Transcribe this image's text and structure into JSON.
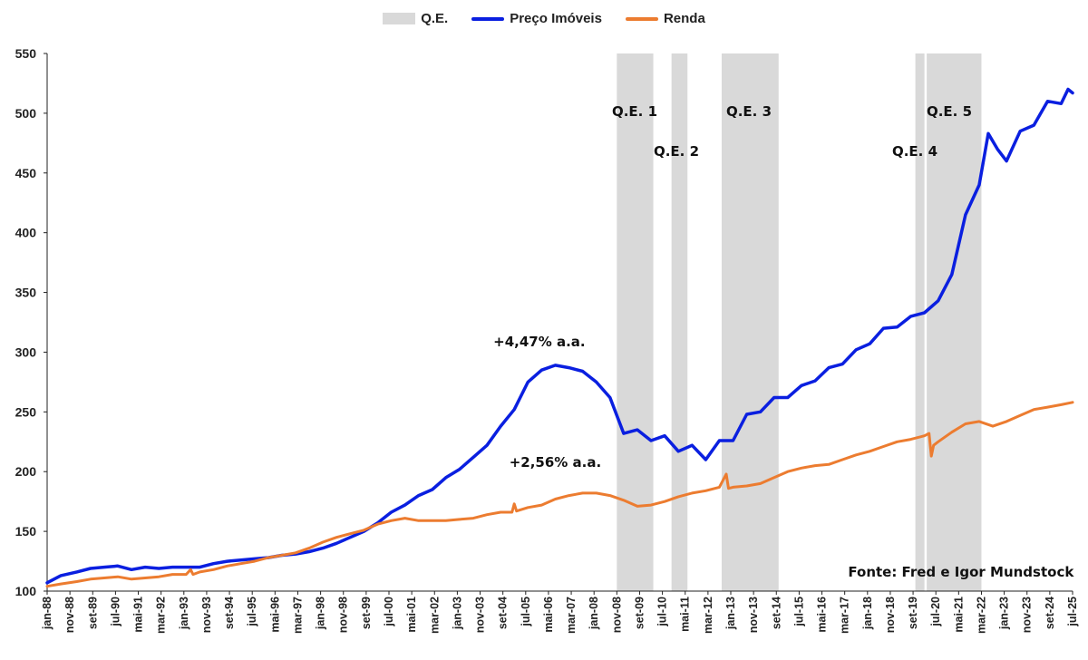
{
  "legend": {
    "qe_label": "Q.E.",
    "price_label": "Preço Imóveis",
    "income_label": "Renda"
  },
  "colors": {
    "price": "#0a1fe0",
    "income": "#ec7c30",
    "qe": "#d9d9d9",
    "axis": "#222222"
  },
  "chart_data": {
    "type": "line",
    "title": "",
    "xlabel": "",
    "ylabel": "",
    "ylim": [
      100,
      550
    ],
    "yticks": [
      100,
      150,
      200,
      250,
      300,
      350,
      400,
      450,
      500,
      550
    ],
    "grid": false,
    "legend_position": "top-center",
    "xlim": [
      "1988-01",
      "2025-07"
    ],
    "x_tick_labels": [
      "jan-88",
      "nov-88",
      "set-89",
      "jul-90",
      "mai-91",
      "mar-92",
      "jan-93",
      "nov-93",
      "set-94",
      "jul-95",
      "mai-96",
      "mar-97",
      "jan-98",
      "nov-98",
      "set-99",
      "jul-00",
      "mai-01",
      "mar-02",
      "jan-03",
      "nov-03",
      "set-04",
      "jul-05",
      "mai-06",
      "mar-07",
      "jan-08",
      "nov-08",
      "set-09",
      "jul-10",
      "mai-11",
      "mar-12",
      "jan-13",
      "nov-13",
      "set-14",
      "jul-15",
      "mai-16",
      "mar-17",
      "jan-18",
      "nov-18",
      "set-19",
      "jul-20",
      "mai-21",
      "mar-22",
      "jan-23",
      "nov-23",
      "set-24",
      "jul-25"
    ],
    "series": [
      {
        "name": "Preço Imóveis",
        "color": "#0a1fe0",
        "points": [
          [
            "1988-01",
            107
          ],
          [
            "1988-07",
            113
          ],
          [
            "1989-02",
            116
          ],
          [
            "1989-08",
            119
          ],
          [
            "1990-02",
            120
          ],
          [
            "1990-08",
            121
          ],
          [
            "1991-02",
            118
          ],
          [
            "1991-08",
            120
          ],
          [
            "1992-02",
            119
          ],
          [
            "1992-08",
            120
          ],
          [
            "1993-02",
            120
          ],
          [
            "1993-08",
            120
          ],
          [
            "1994-02",
            123
          ],
          [
            "1994-08",
            125
          ],
          [
            "1995-02",
            126
          ],
          [
            "1995-08",
            127
          ],
          [
            "1996-02",
            128
          ],
          [
            "1996-08",
            130
          ],
          [
            "1997-02",
            131
          ],
          [
            "1997-08",
            133
          ],
          [
            "1998-02",
            136
          ],
          [
            "1998-08",
            140
          ],
          [
            "1999-02",
            145
          ],
          [
            "1999-08",
            150
          ],
          [
            "2000-02",
            157
          ],
          [
            "2000-08",
            166
          ],
          [
            "2001-02",
            172
          ],
          [
            "2001-08",
            180
          ],
          [
            "2002-02",
            185
          ],
          [
            "2002-08",
            195
          ],
          [
            "2003-02",
            202
          ],
          [
            "2003-08",
            212
          ],
          [
            "2004-02",
            222
          ],
          [
            "2004-08",
            238
          ],
          [
            "2005-02",
            252
          ],
          [
            "2005-08",
            275
          ],
          [
            "2006-02",
            285
          ],
          [
            "2006-08",
            289
          ],
          [
            "2007-02",
            287
          ],
          [
            "2007-08",
            284
          ],
          [
            "2008-02",
            275
          ],
          [
            "2008-08",
            262
          ],
          [
            "2009-02",
            232
          ],
          [
            "2009-08",
            235
          ],
          [
            "2010-02",
            226
          ],
          [
            "2010-08",
            230
          ],
          [
            "2011-02",
            217
          ],
          [
            "2011-08",
            222
          ],
          [
            "2012-02",
            210
          ],
          [
            "2012-08",
            226
          ],
          [
            "2013-02",
            226
          ],
          [
            "2013-08",
            248
          ],
          [
            "2014-02",
            250
          ],
          [
            "2014-08",
            262
          ],
          [
            "2015-02",
            262
          ],
          [
            "2015-08",
            272
          ],
          [
            "2016-02",
            276
          ],
          [
            "2016-08",
            287
          ],
          [
            "2017-02",
            290
          ],
          [
            "2017-08",
            302
          ],
          [
            "2018-02",
            307
          ],
          [
            "2018-08",
            320
          ],
          [
            "2019-02",
            321
          ],
          [
            "2019-08",
            330
          ],
          [
            "2020-02",
            333
          ],
          [
            "2020-08",
            343
          ],
          [
            "2021-02",
            365
          ],
          [
            "2021-08",
            415
          ],
          [
            "2022-02",
            440
          ],
          [
            "2022-06",
            483
          ],
          [
            "2022-10",
            470
          ],
          [
            "2023-02",
            460
          ],
          [
            "2023-08",
            485
          ],
          [
            "2024-02",
            490
          ],
          [
            "2024-08",
            510
          ],
          [
            "2025-02",
            508
          ],
          [
            "2025-05",
            520
          ],
          [
            "2025-07",
            517
          ]
        ]
      },
      {
        "name": "Renda",
        "color": "#ec7c30",
        "points": [
          [
            "1988-01",
            104
          ],
          [
            "1988-07",
            106
          ],
          [
            "1989-02",
            108
          ],
          [
            "1989-08",
            110
          ],
          [
            "1990-02",
            111
          ],
          [
            "1990-08",
            112
          ],
          [
            "1991-02",
            110
          ],
          [
            "1991-08",
            111
          ],
          [
            "1992-02",
            112
          ],
          [
            "1992-08",
            114
          ],
          [
            "1993-02",
            114
          ],
          [
            "1993-04",
            118
          ],
          [
            "1993-05",
            114
          ],
          [
            "1993-08",
            116
          ],
          [
            "1994-02",
            118
          ],
          [
            "1994-08",
            121
          ],
          [
            "1995-02",
            123
          ],
          [
            "1995-08",
            125
          ],
          [
            "1996-02",
            128
          ],
          [
            "1996-08",
            130
          ],
          [
            "1997-02",
            132
          ],
          [
            "1997-08",
            136
          ],
          [
            "1998-02",
            141
          ],
          [
            "1998-08",
            145
          ],
          [
            "1999-02",
            148
          ],
          [
            "1999-08",
            151
          ],
          [
            "2000-02",
            156
          ],
          [
            "2000-08",
            159
          ],
          [
            "2001-02",
            161
          ],
          [
            "2001-08",
            159
          ],
          [
            "2002-02",
            159
          ],
          [
            "2002-08",
            159
          ],
          [
            "2003-02",
            160
          ],
          [
            "2003-08",
            161
          ],
          [
            "2004-02",
            164
          ],
          [
            "2004-08",
            166
          ],
          [
            "2005-01",
            166
          ],
          [
            "2005-02",
            173
          ],
          [
            "2005-03",
            167
          ],
          [
            "2005-08",
            170
          ],
          [
            "2006-02",
            172
          ],
          [
            "2006-08",
            177
          ],
          [
            "2007-02",
            180
          ],
          [
            "2007-08",
            182
          ],
          [
            "2008-02",
            182
          ],
          [
            "2008-08",
            180
          ],
          [
            "2009-02",
            176
          ],
          [
            "2009-08",
            171
          ],
          [
            "2010-02",
            172
          ],
          [
            "2010-08",
            175
          ],
          [
            "2011-02",
            179
          ],
          [
            "2011-08",
            182
          ],
          [
            "2012-02",
            184
          ],
          [
            "2012-08",
            187
          ],
          [
            "2012-11",
            198
          ],
          [
            "2012-12",
            186
          ],
          [
            "2013-02",
            187
          ],
          [
            "2013-08",
            188
          ],
          [
            "2014-02",
            190
          ],
          [
            "2014-08",
            195
          ],
          [
            "2015-02",
            200
          ],
          [
            "2015-08",
            203
          ],
          [
            "2016-02",
            205
          ],
          [
            "2016-08",
            206
          ],
          [
            "2017-02",
            210
          ],
          [
            "2017-08",
            214
          ],
          [
            "2018-02",
            217
          ],
          [
            "2018-08",
            221
          ],
          [
            "2019-02",
            225
          ],
          [
            "2019-08",
            227
          ],
          [
            "2020-02",
            230
          ],
          [
            "2020-04",
            232
          ],
          [
            "2020-05",
            213
          ],
          [
            "2020-06",
            222
          ],
          [
            "2020-08",
            225
          ],
          [
            "2021-02",
            233
          ],
          [
            "2021-08",
            240
          ],
          [
            "2022-02",
            242
          ],
          [
            "2022-08",
            238
          ],
          [
            "2023-02",
            242
          ],
          [
            "2023-08",
            247
          ],
          [
            "2024-02",
            252
          ],
          [
            "2024-08",
            254
          ],
          [
            "2025-02",
            256
          ],
          [
            "2025-07",
            258
          ]
        ]
      }
    ],
    "qe_periods": [
      {
        "label": "Q.E. 1",
        "start": "2008-11",
        "end": "2010-03"
      },
      {
        "label": "Q.E. 2",
        "start": "2010-11",
        "end": "2011-06"
      },
      {
        "label": "Q.E. 3",
        "start": "2012-09",
        "end": "2014-10"
      },
      {
        "label": "Q.E. 4",
        "start": "2019-10",
        "end": "2020-02"
      },
      {
        "label": "Q.E. 5",
        "start": "2020-03",
        "end": "2022-03"
      }
    ],
    "annotations": [
      {
        "text": "+4,47% a.a.",
        "x": "2006-01",
        "y": 305
      },
      {
        "text": "+2,56% a.a.",
        "x": "2006-08",
        "y": 204
      },
      {
        "text": "Fonte: Fred e Igor Mundstock",
        "x": "2021-06",
        "y": 112
      }
    ]
  }
}
